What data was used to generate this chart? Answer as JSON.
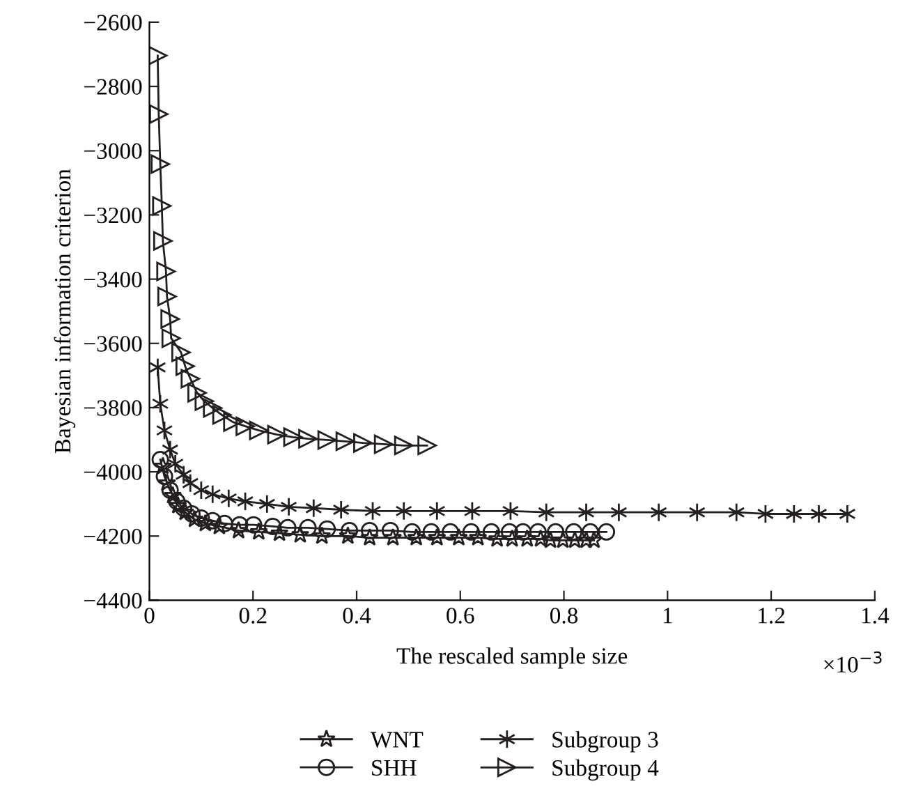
{
  "chart_data": {
    "type": "line",
    "xlabel": "The rescaled sample size",
    "ylabel": "Bayesian information criterion",
    "annotations": [
      "×10$^{−3}$"
    ],
    "xlim": [
      0,
      1.4
    ],
    "xticks": [
      0,
      0.2,
      0.4,
      0.6,
      0.8,
      1,
      1.2,
      1.4
    ],
    "ylim": [
      -4400,
      -2600
    ],
    "yticks": [
      -4400,
      -4200,
      -4000,
      -3800,
      -3600,
      -3400,
      -3200,
      -3000,
      -2800,
      -2600
    ],
    "grid": false,
    "legend": "bottom",
    "line_style": "solid",
    "series": [
      {
        "name": "WNT",
        "color": "#231f20",
        "marker": "star",
        "x": [
          0.026,
          0.034,
          0.045,
          0.055,
          0.069,
          0.087,
          0.108,
          0.135,
          0.172,
          0.211,
          0.251,
          0.291,
          0.333,
          0.383,
          0.425,
          0.47,
          0.515,
          0.555,
          0.597,
          0.634,
          0.671,
          0.7,
          0.729,
          0.755,
          0.774,
          0.798,
          0.821,
          0.843,
          0.858
        ],
        "values": [
          -3983,
          -4035,
          -4074,
          -4105,
          -4126,
          -4148,
          -4161,
          -4170,
          -4183,
          -4187,
          -4191,
          -4196,
          -4200,
          -4200,
          -4205,
          -4205,
          -4205,
          -4205,
          -4205,
          -4205,
          -4209,
          -4209,
          -4209,
          -4209,
          -4213,
          -4213,
          -4213,
          -4213,
          -4213
        ]
      },
      {
        "name": "SHH",
        "color": "#231f20",
        "marker": "circle",
        "x": [
          0.021,
          0.029,
          0.04,
          0.053,
          0.066,
          0.082,
          0.1,
          0.122,
          0.145,
          0.174,
          0.201,
          0.238,
          0.267,
          0.306,
          0.343,
          0.386,
          0.425,
          0.465,
          0.507,
          0.544,
          0.581,
          0.621,
          0.66,
          0.695,
          0.721,
          0.75,
          0.784,
          0.819,
          0.851,
          0.882
        ],
        "values": [
          -3962,
          -4014,
          -4057,
          -4092,
          -4113,
          -4131,
          -4144,
          -4152,
          -4161,
          -4165,
          -4165,
          -4170,
          -4174,
          -4174,
          -4178,
          -4183,
          -4183,
          -4183,
          -4187,
          -4187,
          -4187,
          -4187,
          -4187,
          -4187,
          -4187,
          -4187,
          -4187,
          -4187,
          -4187,
          -4187
        ]
      },
      {
        "name": "Subgroup 3",
        "color": "#231f20",
        "marker": "cross",
        "x": [
          0.016,
          0.021,
          0.029,
          0.04,
          0.05,
          0.066,
          0.079,
          0.1,
          0.122,
          0.153,
          0.185,
          0.227,
          0.269,
          0.317,
          0.37,
          0.431,
          0.491,
          0.555,
          0.623,
          0.697,
          0.766,
          0.843,
          0.906,
          0.983,
          1.057,
          1.133,
          1.189,
          1.244,
          1.292,
          1.347
        ],
        "values": [
          -3675,
          -3788,
          -3871,
          -3931,
          -3975,
          -4009,
          -4035,
          -4057,
          -4070,
          -4083,
          -4092,
          -4100,
          -4109,
          -4113,
          -4118,
          -4122,
          -4122,
          -4122,
          -4122,
          -4122,
          -4126,
          -4126,
          -4126,
          -4126,
          -4126,
          -4126,
          -4131,
          -4131,
          -4131,
          -4131
        ]
      },
      {
        "name": "Subgroup 4",
        "color": "#231f20",
        "marker": "triangle",
        "x": [
          0.016,
          0.018,
          0.021,
          0.024,
          0.026,
          0.032,
          0.034,
          0.04,
          0.042,
          0.061,
          0.069,
          0.079,
          0.092,
          0.106,
          0.122,
          0.14,
          0.161,
          0.185,
          0.211,
          0.246,
          0.277,
          0.306,
          0.343,
          0.378,
          0.412,
          0.452,
          0.491,
          0.536
        ],
        "values": [
          -2704,
          -2886,
          -3042,
          -3172,
          -3281,
          -3376,
          -3454,
          -3524,
          -3584,
          -3628,
          -3671,
          -3710,
          -3754,
          -3780,
          -3801,
          -3823,
          -3845,
          -3858,
          -3871,
          -3884,
          -3892,
          -3897,
          -3901,
          -3905,
          -3910,
          -3914,
          -3918,
          -3918
        ]
      }
    ]
  }
}
